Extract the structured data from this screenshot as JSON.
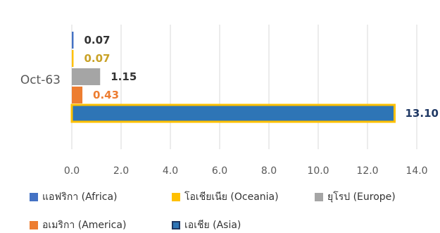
{
  "chart_data": {
    "type": "bar",
    "orientation": "horizontal",
    "categories": [
      "Oct-63"
    ],
    "series": [
      {
        "name": "แอฟริกา (Africa)",
        "values": [
          0.07
        ],
        "value_labels": [
          "0.07"
        ],
        "color": "#4472C4",
        "label_color": "#333333"
      },
      {
        "name": "โอเชียเนีย (Oceania)",
        "values": [
          0.07
        ],
        "value_labels": [
          "0.07"
        ],
        "color": "#FFC000",
        "label_color": "#C9A227"
      },
      {
        "name": "ยุโรป (Europe)",
        "values": [
          1.15
        ],
        "value_labels": [
          "1.15"
        ],
        "color": "#A5A5A5",
        "label_color": "#333333"
      },
      {
        "name": "อเมริกา (America)",
        "values": [
          0.43
        ],
        "value_labels": [
          "0.43"
        ],
        "color": "#ED7D31",
        "label_color": "#ED7D31"
      },
      {
        "name": "เอเชีย (Asia)",
        "values": [
          13.1
        ],
        "value_labels": [
          "13.10"
        ],
        "color": "#2E75B6",
        "label_color": "#1F3864",
        "outline": "#FFC000"
      }
    ],
    "x_ticks": [
      "0.0",
      "2.0",
      "4.0",
      "6.0",
      "8.0",
      "10.0",
      "12.0",
      "14.0"
    ],
    "xlim": [
      0,
      14
    ],
    "grid": "vertical",
    "legend_position": "bottom",
    "title": "",
    "xlabel": "",
    "ylabel": ""
  }
}
